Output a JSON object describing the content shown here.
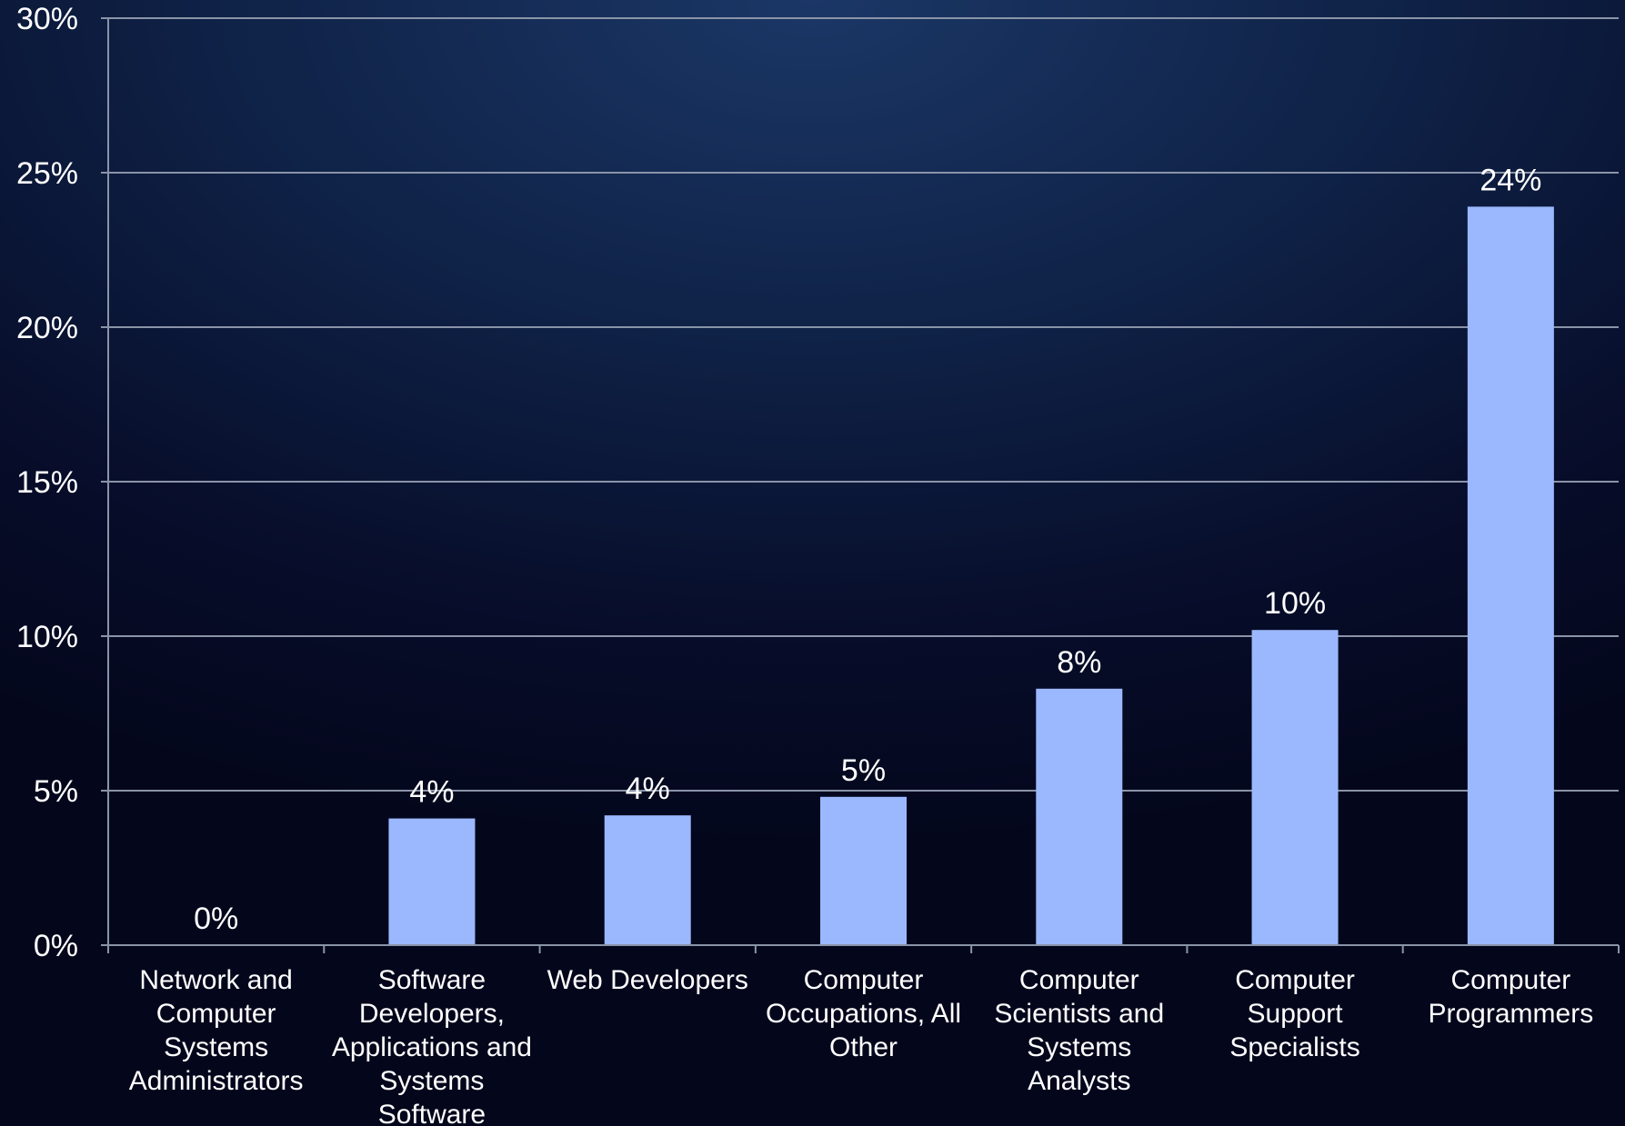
{
  "chart_data": {
    "type": "bar",
    "title": "",
    "xlabel": "",
    "ylabel": "",
    "categories": [
      "Network and Computer Systems Administrators",
      "Software Developers, Applications and Systems Software",
      "Web Developers",
      "Computer Occupations, All Other",
      "Computer Scientists and Systems Analysts",
      "Computer Support Specialists",
      "Computer Programmers"
    ],
    "category_lines": [
      [
        "Network and",
        "Computer",
        "Systems",
        "Administrators"
      ],
      [
        "Software",
        "Developers,",
        "Applications and",
        "Systems",
        "Software"
      ],
      [
        "Web Developers"
      ],
      [
        "Computer",
        "Occupations, All",
        "Other"
      ],
      [
        "Computer",
        "Scientists and",
        "Systems",
        "Analysts"
      ],
      [
        "Computer",
        "Support",
        "Specialists"
      ],
      [
        "Computer",
        "Programmers"
      ]
    ],
    "values": [
      0.0,
      4.1,
      4.2,
      4.8,
      8.3,
      10.2,
      23.9
    ],
    "data_labels": [
      "0%",
      "4%",
      "4%",
      "5%",
      "8%",
      "10%",
      "24%"
    ],
    "ylim": [
      0,
      30
    ],
    "yticks": [
      0,
      5,
      10,
      15,
      20,
      25,
      30
    ],
    "ytick_labels": [
      "0%",
      "5%",
      "10%",
      "15%",
      "20%",
      "25%",
      "30%"
    ],
    "grid": true,
    "legend": "none",
    "bar_color": "#9bb8ff",
    "grid_color": "#8a94a8"
  }
}
